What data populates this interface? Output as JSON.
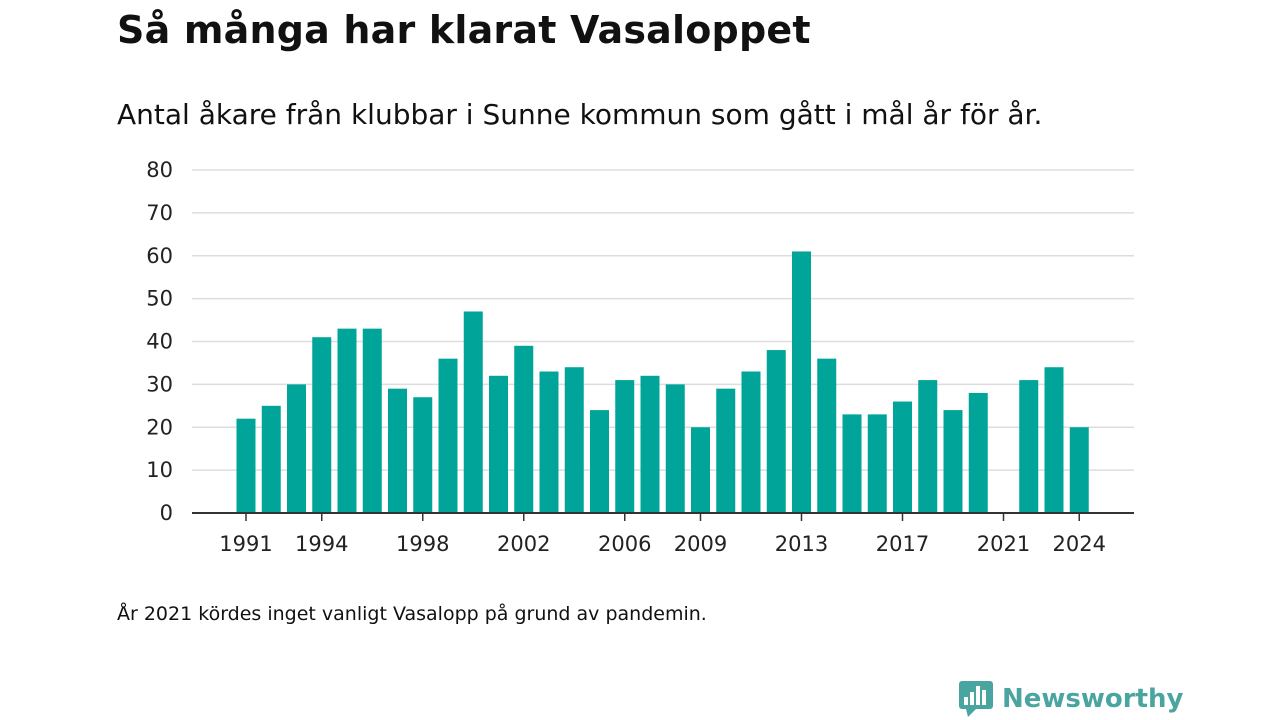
{
  "title": "Så många har klarat Vasaloppet",
  "subtitle": "Antal åkare från klubbar i Sunne kommun som gått i mål år för år.",
  "note": "År 2021 kördes inget vanligt Vasalopp på grund av pandemin.",
  "brand": {
    "name": "Newsworthy",
    "icon": "bar-chart-speech-bubble-icon",
    "color": "#4aa5a0"
  },
  "colors": {
    "bar": "#00a499",
    "grid": "#dddddd",
    "axis": "#333333"
  },
  "chart_data": {
    "type": "bar",
    "categories": [
      "1991",
      "1992",
      "1993",
      "1994",
      "1995",
      "1996",
      "1997",
      "1998",
      "1999",
      "2000",
      "2001",
      "2002",
      "2003",
      "2004",
      "2005",
      "2006",
      "2007",
      "2008",
      "2009",
      "2010",
      "2011",
      "2012",
      "2013",
      "2014",
      "2015",
      "2016",
      "2017",
      "2018",
      "2019",
      "2020",
      "2021",
      "2022",
      "2023",
      "2024"
    ],
    "values": [
      22,
      25,
      30,
      41,
      43,
      43,
      29,
      27,
      36,
      47,
      32,
      39,
      33,
      34,
      24,
      31,
      32,
      30,
      20,
      29,
      33,
      38,
      61,
      36,
      23,
      23,
      26,
      31,
      24,
      28,
      null,
      31,
      34,
      20
    ],
    "xticks": [
      "1991",
      "1994",
      "1998",
      "2002",
      "2006",
      "2009",
      "2013",
      "2017",
      "2021",
      "2024"
    ],
    "yticks": [
      0,
      10,
      20,
      30,
      40,
      50,
      60,
      70,
      80
    ],
    "ylim": [
      0,
      80
    ],
    "grid": true,
    "legend": "none"
  }
}
